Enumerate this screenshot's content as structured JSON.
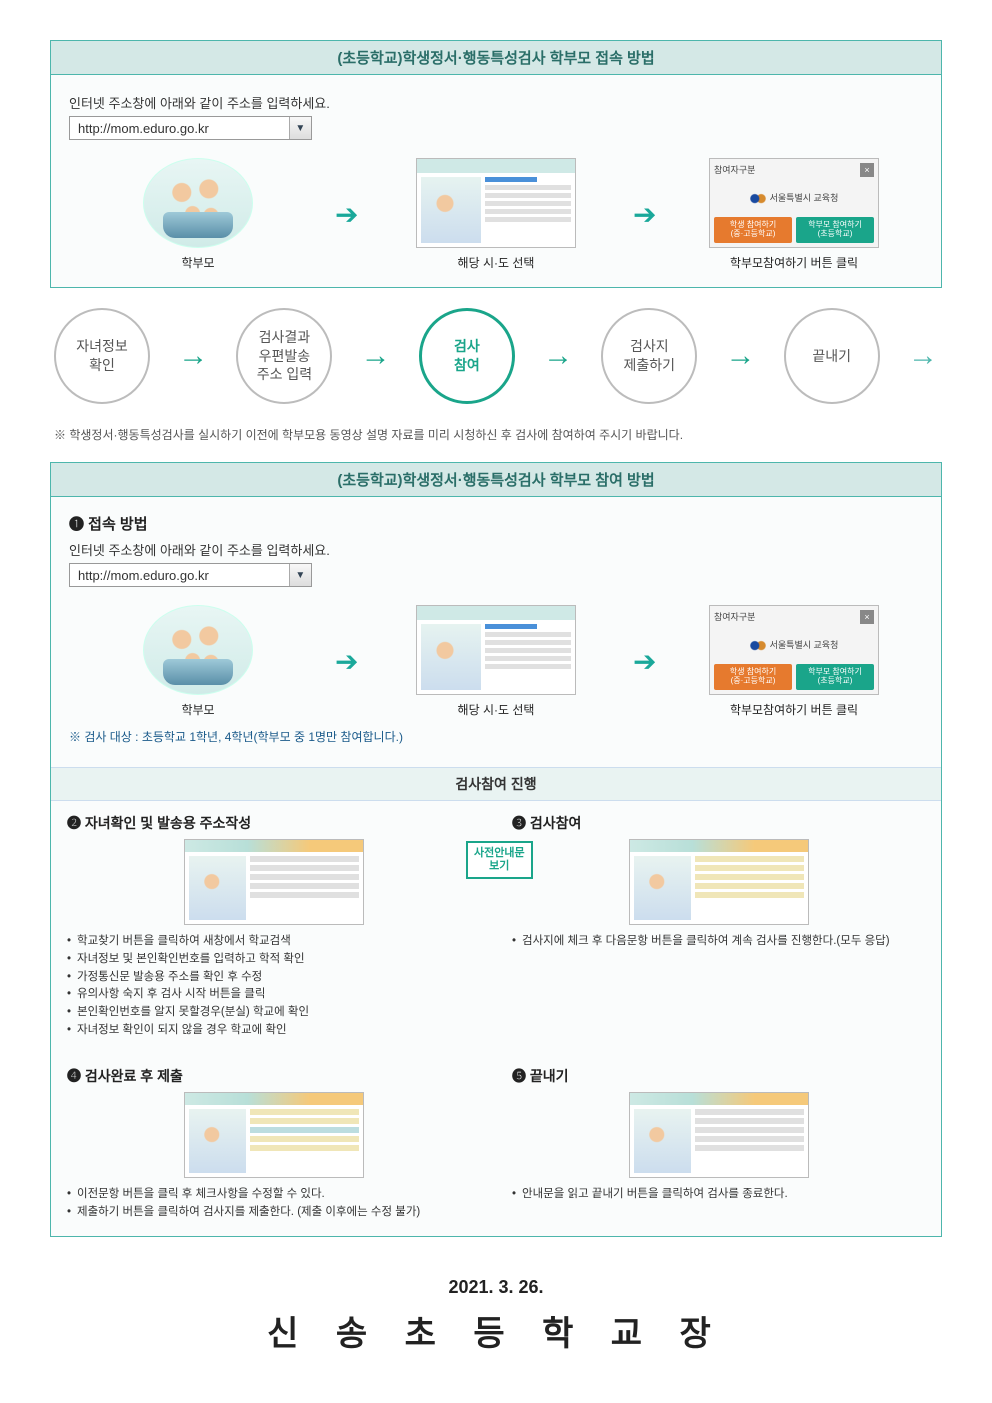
{
  "panel1": {
    "header": "(초등학교)학생정서·행동특성검사 학부모 접속 방법",
    "instruction": "인터넷 주소창에 아래와 같이 주소를 입력하세요.",
    "url": "http://mom.eduro.go.kr",
    "cells": {
      "parent": "학부모",
      "region": "해당 시·도 선택",
      "click": "학부모참여하기 버튼 클릭"
    },
    "popup": {
      "title": "참여자구분",
      "org": "서울특별시 교육청",
      "btn1_l1": "학생 참여하기",
      "btn1_l2": "(중·고등학교)",
      "btn2_l1": "학부모 참여하기",
      "btn2_l2": "(초등학교)"
    }
  },
  "steps": {
    "s1": "자녀정보\n확인",
    "s2": "검사결과\n우편발송\n주소 입력",
    "s3": "검사\n참여",
    "s4": "검사지\n제출하기",
    "s5": "끝내기"
  },
  "between_note": "※ 학생정서·행동특성검사를 실시하기 이전에 학부모용 동영상 설명 자료를 미리 시청하신 후 검사에 참여하여 주시기 바랍니다.",
  "panel2": {
    "header": "(초등학교)학생정서·행동특성검사 학부모 참여 방법",
    "sec1_title": "❶ 접속 방법",
    "instruction": "인터넷 주소창에 아래와 같이 주소를 입력하세요.",
    "url": "http://mom.eduro.go.kr",
    "cells": {
      "parent": "학부모",
      "region": "해당 시·도 선택",
      "click": "학부모참여하기 버튼 클릭"
    },
    "popup": {
      "title": "참여자구분",
      "org": "서울특별시 교육청",
      "btn1_l1": "학생 참여하기",
      "btn1_l2": "(중·고등학교)",
      "btn2_l1": "학부모 참여하기",
      "btn2_l2": "(초등학교)"
    },
    "target_note": "※ 검사 대상 : 초등학교 1학년, 4학년(학부모 중 1명만 참여합니다.)",
    "progress_header": "검사참여 진행",
    "center_tag": "사전안내문\n보기",
    "g2": {
      "title": "❷ 자녀확인 및 발송용 주소작성",
      "items": [
        "학교찾기 버튼을 클릭하여 새창에서 학교검색",
        "자녀정보 및 본인확인번호를 입력하고 학적 확인",
        "가정통신문 발송용 주소를 확인 후 수정",
        "유의사항 숙지 후 검사 시작 버튼을 클릭",
        "본인확인번호를 알지 못할경우(분실) 학교에 확인",
        "자녀정보 확인이 되지 않을 경우 학교에 확인"
      ]
    },
    "g3": {
      "title": "❸ 검사참여",
      "items": [
        "검사지에 체크 후 다음문항 버튼을 클릭하여 계속 검사를 진행한다.(모두 응답)"
      ]
    },
    "g4": {
      "title": "❹ 검사완료 후 제출",
      "items": [
        "이전문항 버튼을 클릭 후 체크사항을 수정할 수 있다.",
        "제출하기 버튼을 클릭하여 검사지를 제출한다. (제출 이후에는 수정 불가)"
      ]
    },
    "g5": {
      "title": "❺ 끝내기",
      "items": [
        "안내문을 읽고 끝내기 버튼을 클릭하여 검사를 종료한다."
      ]
    }
  },
  "footer": {
    "date": "2021. 3. 26.",
    "name": "신 송 초 등 학 교 장"
  },
  "colors": {
    "teal": "#1aa58a",
    "border": "#4db6ac",
    "header_bg": "#d4e8e6",
    "orange": "#e67a2e"
  }
}
